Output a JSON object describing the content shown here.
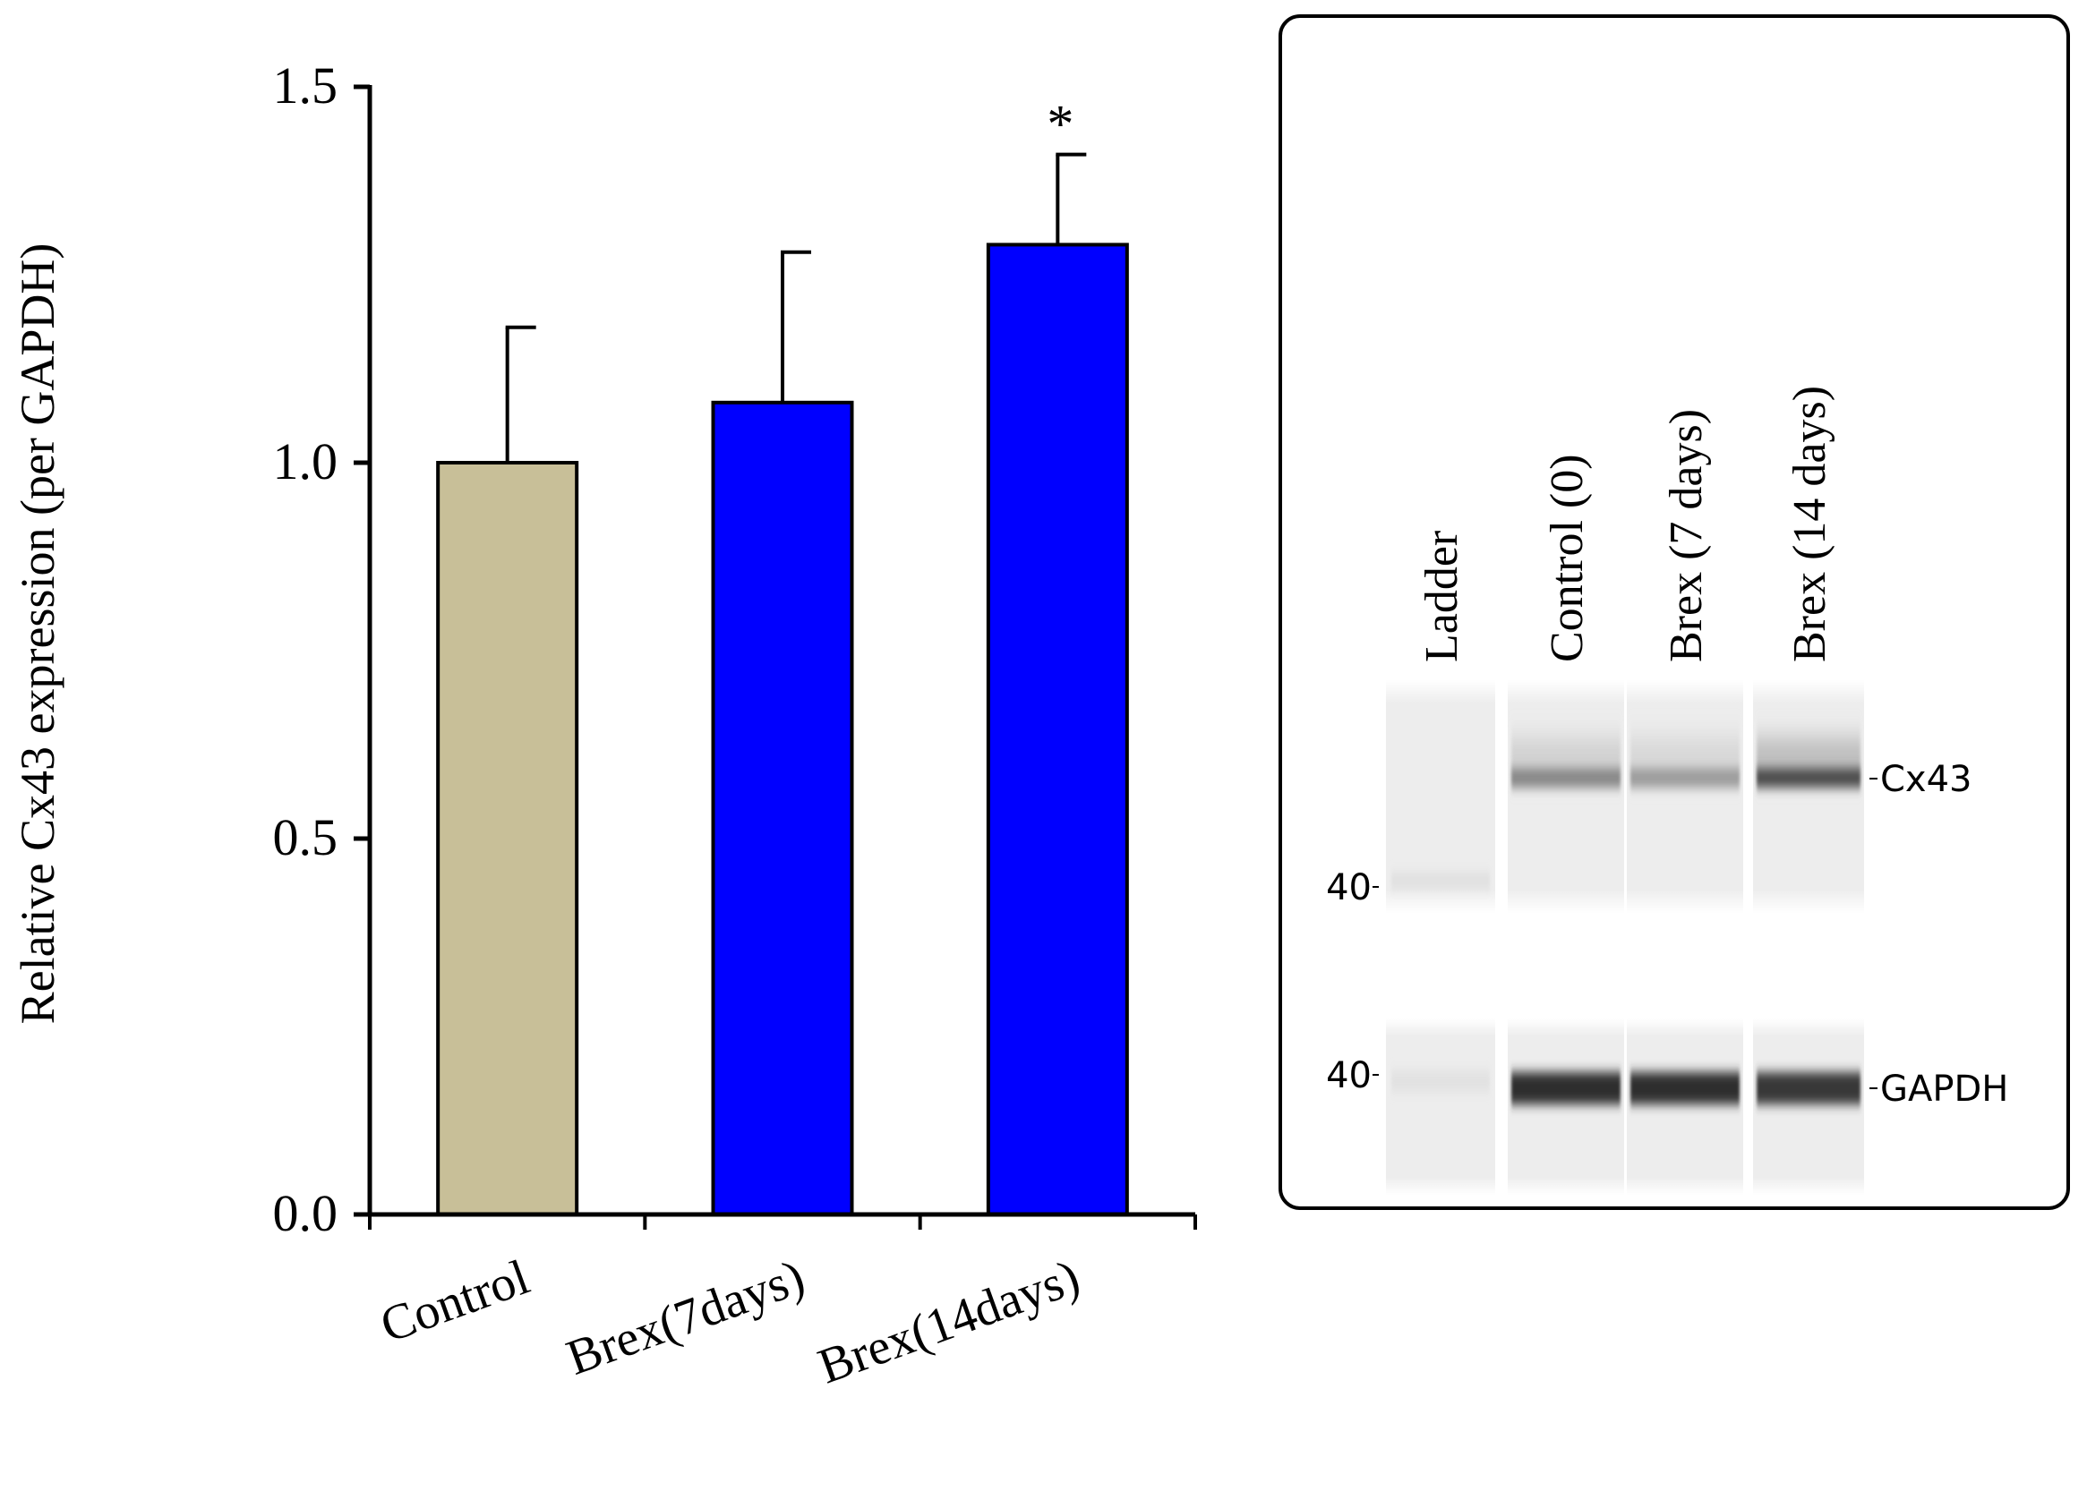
{
  "chart_data": {
    "type": "bar",
    "ylabel": "Relative Cx43 expression (per GAPDH)",
    "xlabel": "",
    "ylim": [
      0,
      1.5
    ],
    "yticks": [
      "0.0",
      "0.5",
      "1.0",
      "1.5"
    ],
    "categories": [
      "Control",
      "Brex(7days)",
      "Brex(14days)"
    ],
    "values": [
      1.0,
      1.08,
      1.29
    ],
    "errors": [
      0.18,
      0.2,
      0.12
    ],
    "significance": [
      "",
      "",
      "*"
    ],
    "colors": [
      "#c8bf98",
      "#0000ff",
      "#0000ff"
    ],
    "grid": false
  },
  "blot": {
    "lane_labels": [
      "Ladder",
      "Control (0)",
      "Brex (7 days)",
      "Brex (14 days)"
    ],
    "band_labels": [
      "Cx43",
      "GAPDH"
    ],
    "marker_labels": [
      "40",
      "40"
    ],
    "intensity": {
      "cx43": [
        0.0,
        0.55,
        0.45,
        0.85
      ],
      "gapdh": [
        0.0,
        1.0,
        1.0,
        0.95
      ]
    }
  }
}
